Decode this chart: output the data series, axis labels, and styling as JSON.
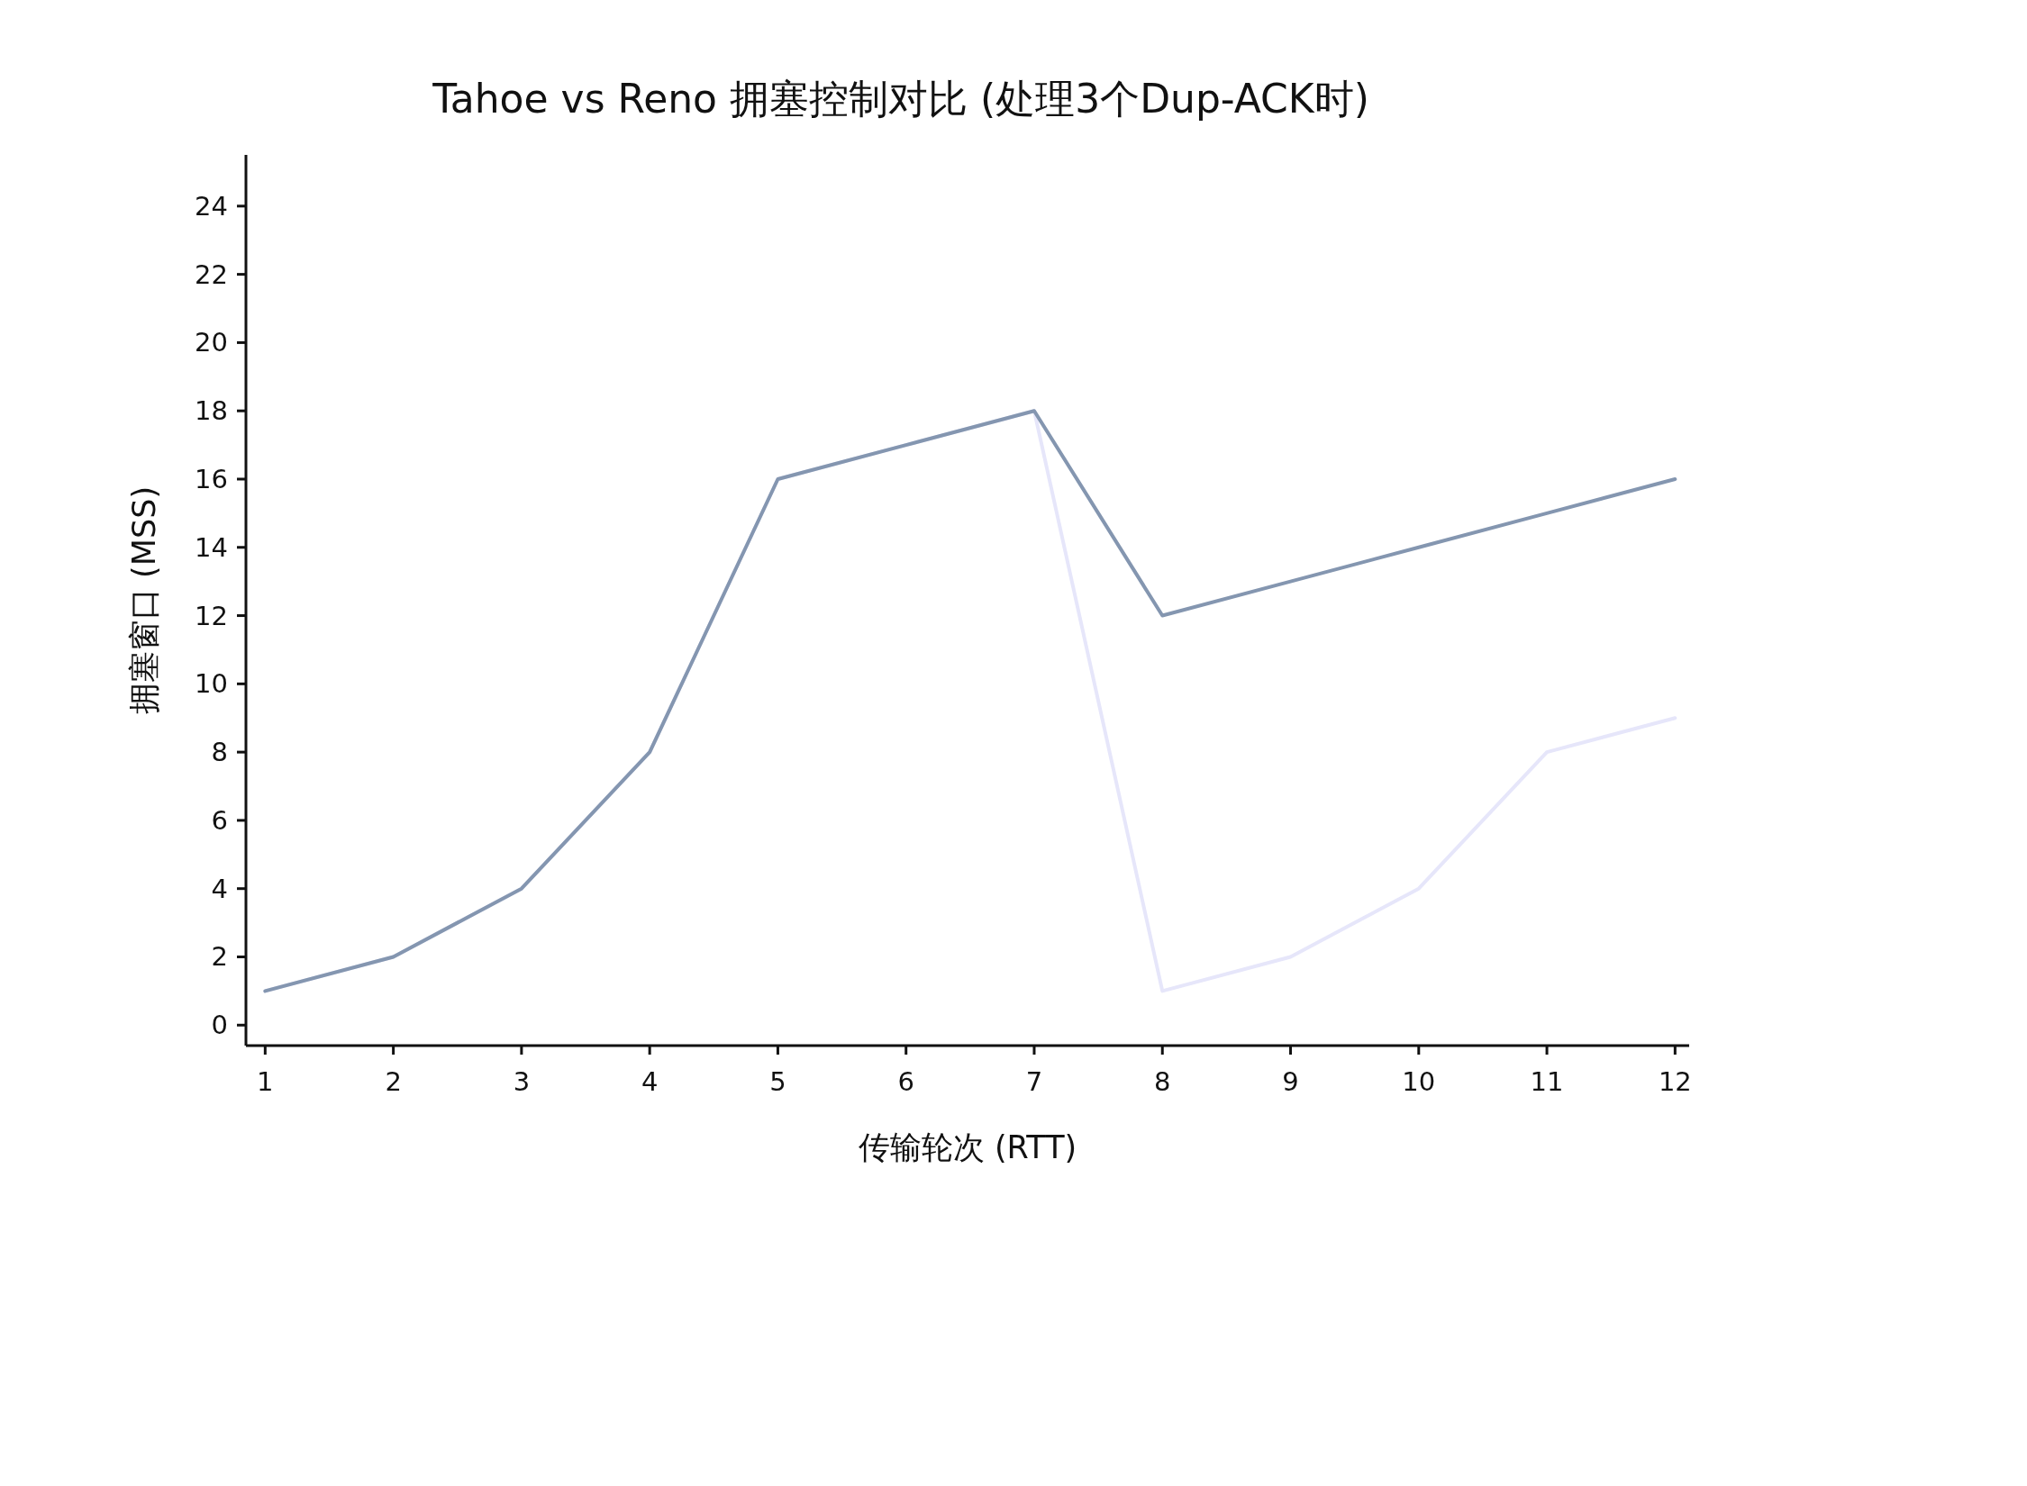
{
  "chart_data": {
    "type": "line",
    "title": "Tahoe vs Reno 拥塞控制对比 (处理3个Dup-ACK时)",
    "xlabel": "传输轮次 (RTT)",
    "ylabel": "拥塞窗口 (MSS)",
    "x": [
      1,
      2,
      3,
      4,
      5,
      6,
      7,
      8,
      9,
      10,
      11,
      12
    ],
    "series": [
      {
        "color": "#e6e6fa",
        "values": [
          1,
          2,
          4,
          8,
          16,
          17,
          18,
          1,
          2,
          4,
          8,
          9
        ]
      },
      {
        "color": "#8496b0",
        "values": [
          1,
          2,
          4,
          8,
          16,
          17,
          18,
          12,
          13,
          14,
          15,
          16
        ]
      }
    ],
    "xlim": [
      0.85,
      12.11
    ],
    "ylim": [
      -0.6,
      25.5
    ],
    "xticks": [
      1,
      2,
      3,
      4,
      5,
      6,
      7,
      8,
      9,
      10,
      11,
      12
    ],
    "yticks": [
      0,
      2,
      4,
      6,
      8,
      10,
      12,
      14,
      16,
      18,
      20,
      22,
      24
    ],
    "grid": false
  }
}
